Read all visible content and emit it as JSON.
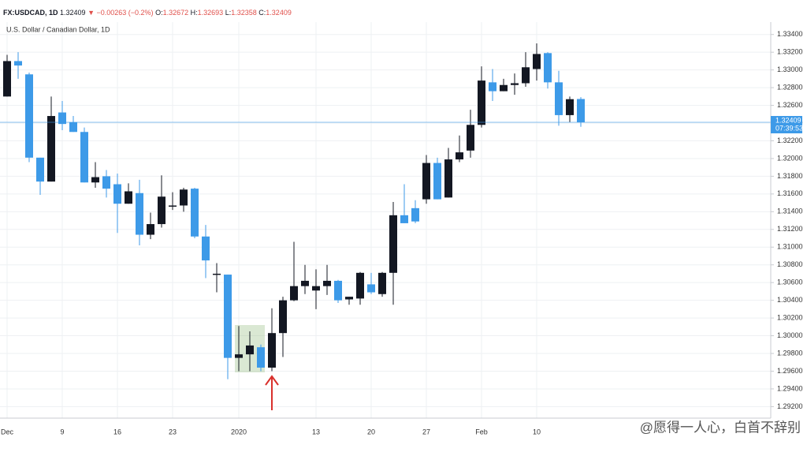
{
  "header": {
    "symbol": "FX:USDCAD, 1D",
    "last": "1.32409",
    "change": "▼ −0.00263 (−0.2%)",
    "ohlc": [
      {
        "key": "O:",
        "value": "1.32672"
      },
      {
        "key": "H:",
        "value": "1.32693"
      },
      {
        "key": "L:",
        "value": "1.32358"
      },
      {
        "key": "C:",
        "value": "1.32409"
      }
    ]
  },
  "chart_data": {
    "type": "candlestick",
    "subtitle": "U.S. Dollar / Canadian Dollar, 1D",
    "categories": [
      "Dec",
      null,
      null,
      null,
      null,
      "9",
      null,
      null,
      null,
      null,
      "16",
      null,
      null,
      null,
      null,
      "23",
      null,
      null,
      null,
      null,
      null,
      "2020",
      null,
      null,
      null,
      null,
      null,
      null,
      "13",
      null,
      null,
      null,
      null,
      "20",
      null,
      null,
      null,
      null,
      "27",
      null,
      null,
      null,
      null,
      "Feb",
      null,
      null,
      null,
      null,
      "10",
      null,
      null,
      null,
      null
    ],
    "open": [
      1.327,
      1.331,
      1.3295,
      1.3201,
      1.3174,
      1.3252,
      1.3241,
      1.323,
      1.3173,
      1.318,
      1.3171,
      1.3149,
      1.3161,
      1.3114,
      1.3126,
      1.3146,
      1.3147,
      1.3166,
      1.3112,
      1.3069,
      1.3069,
      1.2975,
      1.2979,
      1.2987,
      1.2964,
      1.3003,
      1.304,
      1.3056,
      1.3051,
      1.3056,
      1.3062,
      1.3041,
      1.3042,
      1.3058,
      1.3047,
      1.3071,
      1.3136,
      1.3144,
      1.3154,
      1.3195,
      1.3156,
      1.3199,
      1.3209,
      1.3238,
      1.3286,
      1.3276,
      1.3283,
      1.3285,
      1.3301,
      1.3319,
      1.3286,
      1.3249,
      1.32672
    ],
    "high": [
      1.3317,
      1.332,
      1.3297,
      1.3201,
      1.327,
      1.3265,
      1.3248,
      1.3235,
      1.3196,
      1.3187,
      1.3183,
      1.3172,
      1.3176,
      1.3139,
      1.3181,
      1.3162,
      1.3167,
      1.3167,
      1.3125,
      1.3082,
      1.3069,
      1.3011,
      1.3005,
      1.299,
      1.3031,
      1.3044,
      1.3106,
      1.308,
      1.3075,
      1.308,
      1.3063,
      1.3044,
      1.3072,
      1.3071,
      1.3072,
      1.3151,
      1.3171,
      1.3153,
      1.3204,
      1.3201,
      1.3212,
      1.3226,
      1.3255,
      1.3304,
      1.3301,
      1.329,
      1.3296,
      1.332,
      1.333,
      1.332,
      1.3299,
      1.327,
      1.32693
    ],
    "low": [
      1.327,
      1.329,
      1.3196,
      1.3159,
      1.3174,
      1.3232,
      1.323,
      1.3173,
      1.3167,
      1.3156,
      1.3116,
      1.3149,
      1.3102,
      1.3109,
      1.3122,
      1.3142,
      1.314,
      1.311,
      1.3065,
      1.3049,
      1.2951,
      1.296,
      1.296,
      1.296,
      1.296,
      1.2976,
      1.3039,
      1.3047,
      1.303,
      1.3046,
      1.3037,
      1.3035,
      1.3035,
      1.3047,
      1.3044,
      1.3035,
      1.3127,
      1.3127,
      1.3149,
      1.3154,
      1.3156,
      1.3196,
      1.3201,
      1.3235,
      1.3265,
      1.3276,
      1.3272,
      1.3281,
      1.3288,
      1.3279,
      1.3237,
      1.3241,
      1.32358
    ],
    "close": [
      1.331,
      1.3305,
      1.3201,
      1.3174,
      1.3248,
      1.3239,
      1.323,
      1.3173,
      1.3179,
      1.3166,
      1.3149,
      1.3163,
      1.3114,
      1.3126,
      1.3157,
      1.3147,
      1.3165,
      1.3112,
      1.3085,
      1.307,
      1.2975,
      1.2979,
      1.2989,
      1.2964,
      1.3003,
      1.304,
      1.3056,
      1.3062,
      1.3056,
      1.3062,
      1.304,
      1.3044,
      1.3071,
      1.3049,
      1.3071,
      1.3136,
      1.3127,
      1.3129,
      1.3195,
      1.3154,
      1.3199,
      1.3207,
      1.3238,
      1.3288,
      1.3276,
      1.3283,
      1.3285,
      1.3303,
      1.3318,
      1.3286,
      1.3249,
      1.3267,
      1.32409
    ],
    "up_color": "#131722",
    "down_color": "#3d9ae8",
    "ylim": [
      1.2907,
      1.3354
    ],
    "yticks": [
      {
        "value": 1.334,
        "label": "1.33400"
      },
      {
        "value": 1.332,
        "label": "1.33200"
      },
      {
        "value": 1.33,
        "label": "1.33000"
      },
      {
        "value": 1.328,
        "label": "1.32800"
      },
      {
        "value": 1.326,
        "label": "1.32600"
      },
      {
        "value": 1.324,
        "label": "1.32400"
      },
      {
        "value": 1.322,
        "label": "1.32200"
      },
      {
        "value": 1.32,
        "label": "1.32000"
      },
      {
        "value": 1.318,
        "label": "1.31800"
      },
      {
        "value": 1.316,
        "label": "1.31600"
      },
      {
        "value": 1.314,
        "label": "1.31400"
      },
      {
        "value": 1.312,
        "label": "1.31200"
      },
      {
        "value": 1.31,
        "label": "1.31000"
      },
      {
        "value": 1.308,
        "label": "1.30800"
      },
      {
        "value": 1.306,
        "label": "1.30600"
      },
      {
        "value": 1.304,
        "label": "1.30400"
      },
      {
        "value": 1.302,
        "label": "1.30200"
      },
      {
        "value": 1.3,
        "label": "1.30000"
      },
      {
        "value": 1.298,
        "label": "1.29800"
      },
      {
        "value": 1.296,
        "label": "1.29600"
      },
      {
        "value": 1.294,
        "label": "1.29400"
      },
      {
        "value": 1.292,
        "label": "1.29200"
      }
    ],
    "grid": true,
    "last_price": 1.32409,
    "countdown": "07:39:53"
  },
  "watermark": "@愿得一人心，白首不辞别"
}
